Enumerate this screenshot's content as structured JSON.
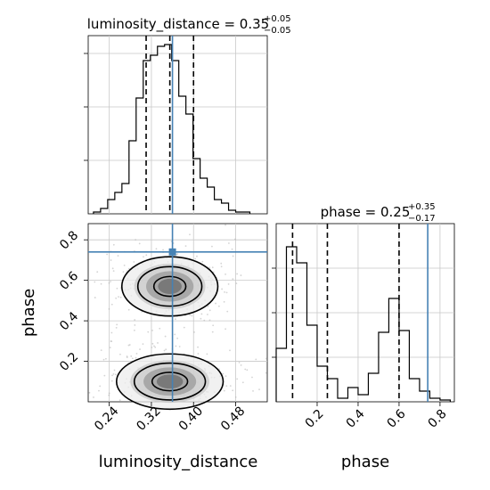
{
  "chart_data": [
    {
      "type": "histogram",
      "panel": "top-left",
      "title": {
        "prefix": "luminosity_distance = 0.35",
        "upper": "+0.05",
        "lower": "−0.05"
      },
      "xlim": [
        0.2,
        0.54
      ],
      "ylim": [
        0,
        1.0
      ],
      "bins": [
        0.21,
        0.2235,
        0.237,
        0.2505,
        0.264,
        0.2775,
        0.291,
        0.3045,
        0.318,
        0.3315,
        0.345,
        0.3585,
        0.372,
        0.3855,
        0.399,
        0.4125,
        0.426,
        0.4395,
        0.453,
        0.4665,
        0.48,
        0.4935,
        0.507
      ],
      "counts": [
        0.01,
        0.03,
        0.08,
        0.12,
        0.17,
        0.41,
        0.65,
        0.86,
        0.89,
        0.94,
        0.95,
        0.86,
        0.66,
        0.56,
        0.31,
        0.2,
        0.15,
        0.08,
        0.06,
        0.02,
        0.01,
        0.01
      ],
      "quantile_lines": [
        0.31,
        0.355,
        0.4
      ],
      "truth": 0.36,
      "ytick_positions": [
        0.3,
        0.6,
        0.9
      ]
    },
    {
      "type": "histogram",
      "panel": "bottom-right",
      "title": {
        "prefix": "phase = 0.25",
        "upper": "+0.35",
        "lower": "−0.17"
      },
      "xlim": [
        0.0,
        0.87
      ],
      "ylim": [
        0,
        1.0
      ],
      "xticks": [
        0.2,
        0.4,
        0.6,
        0.8
      ],
      "xtick_labels": [
        "0.2",
        "0.4",
        "0.6",
        "0.8"
      ],
      "xlabel": "phase",
      "bins": [
        0.0,
        0.05,
        0.1,
        0.15,
        0.2,
        0.25,
        0.3,
        0.35,
        0.4,
        0.45,
        0.5,
        0.55,
        0.6,
        0.65,
        0.7,
        0.75,
        0.8,
        0.85
      ],
      "counts": [
        0.3,
        0.87,
        0.78,
        0.43,
        0.2,
        0.13,
        0.02,
        0.08,
        0.04,
        0.16,
        0.39,
        0.58,
        0.4,
        0.13,
        0.06,
        0.02,
        0.01
      ],
      "quantile_lines": [
        0.08,
        0.25,
        0.6
      ],
      "truth": 0.74,
      "ytick_positions": [
        0.25,
        0.5,
        0.75
      ]
    },
    {
      "type": "contour",
      "panel": "bottom-left",
      "xlim": [
        0.2,
        0.54
      ],
      "ylim": [
        0.0,
        0.88
      ],
      "xticks": [
        0.24,
        0.32,
        0.4,
        0.48
      ],
      "xtick_labels": [
        "0.24",
        "0.32",
        "0.40",
        "0.48"
      ],
      "yticks": [
        0.2,
        0.4,
        0.6,
        0.8
      ],
      "ytick_labels": [
        "0.2",
        "0.4",
        "0.6",
        "0.8"
      ],
      "xlabel": "luminosity_distance",
      "ylabel": "phase",
      "truth": {
        "x": 0.36,
        "y": 0.74
      },
      "modes": [
        {
          "x": 0.355,
          "y": 0.57,
          "sx": 0.045,
          "sy": 0.075
        },
        {
          "x": 0.355,
          "y": 0.1,
          "sx": 0.05,
          "sy": 0.07
        }
      ],
      "contour_levels_sigma": [
        0.5,
        1.0,
        1.5,
        2.0
      ]
    }
  ],
  "colors": {
    "truth": "#4682b4",
    "line": "#000000",
    "grid": "#c8c8c8",
    "scatter": "#b0b0b0"
  }
}
